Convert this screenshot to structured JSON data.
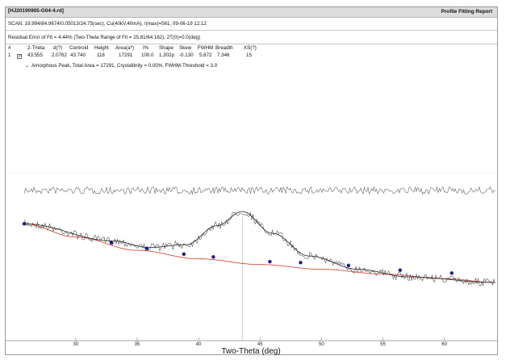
{
  "window": {
    "file_title": "[HJ20190905-G04-4.rd]",
    "report_button": "Profile Fitting Report"
  },
  "scan_line": "SCAN: 19.994/84.9674/0.05013/24.75(sec), Cu(40kV,40mA), I(max)=561, 09-06-19 12:12",
  "residual_line": "Residual Error of Fit = 4.44% (Two-Theta Range of Fit = 25.81/64.162), 2T(0)=0.0(deg)",
  "table": {
    "headers": [
      "#",
      "2-Theta",
      "d(?)",
      "Centroid",
      "Height",
      "Area(a*)",
      "I%",
      "Shape",
      "Skew",
      "FWHM",
      "Breadth",
      "XS(?)"
    ],
    "rows": [
      [
        "1",
        "43.555",
        "2.0762",
        "43.740",
        "118",
        "17291",
        "100.0",
        "1.302p",
        "-0.130",
        "5.872",
        "7.346",
        "15"
      ]
    ],
    "amorphous_line": "Amorphous Peak, Total Area = 17291, Crystallinity = 0.00%, FWHM-Threshold = 3.0"
  },
  "plot": {
    "x_ticks": [
      "30",
      "35",
      "40",
      "45",
      "50",
      "55",
      "60"
    ],
    "xlabel": "Two-Theta (deg)",
    "colors": {
      "pattern": "#555555",
      "fit": "#222222",
      "background": "#d23a2a",
      "point": "#1a1a8c",
      "marker": "#bbbbbb"
    }
  },
  "chart_data": {
    "type": "line",
    "xlabel": "Two-Theta (deg)",
    "ylabel": "",
    "xlim": [
      25.81,
      64.162
    ],
    "x_ticks": [
      30,
      35,
      40,
      45,
      50,
      55,
      60
    ],
    "peak_marker_2theta": 43.555,
    "series": [
      {
        "x": [
          25.81,
          33,
          36,
          39,
          41.5,
          43.555,
          46,
          49,
          53,
          57,
          64.162
        ],
        "values": [
          1.0,
          0.82,
          0.75,
          0.78,
          0.98,
          1.13,
          0.9,
          0.66,
          0.52,
          0.44,
          0.38
        ]
      },
      {
        "x": [
          25.81,
          30,
          35,
          40,
          45,
          50,
          55,
          60,
          64.162
        ],
        "values": [
          1.0,
          0.86,
          0.72,
          0.63,
          0.57,
          0.52,
          0.47,
          0.42,
          0.38
        ]
      }
    ],
    "background_points": [
      {
        "x": 25.81,
        "y": 1.0
      },
      {
        "x": 32.9,
        "y": 0.8
      },
      {
        "x": 35.8,
        "y": 0.74
      },
      {
        "x": 38.8,
        "y": 0.68
      },
      {
        "x": 41.2,
        "y": 0.65
      },
      {
        "x": 45.8,
        "y": 0.6
      },
      {
        "x": 48.3,
        "y": 0.59
      },
      {
        "x": 52.2,
        "y": 0.56
      },
      {
        "x": 56.4,
        "y": 0.51
      },
      {
        "x": 60.6,
        "y": 0.48
      }
    ]
  }
}
